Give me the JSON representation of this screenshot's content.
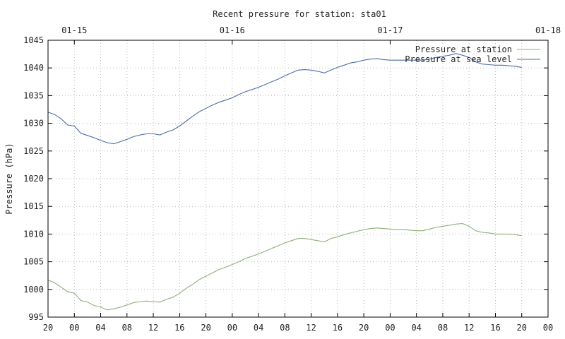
{
  "chart_data": {
    "type": "line",
    "title": "Recent pressure for station: sta01",
    "ylabel": "Pressure (hPa)",
    "xlabel": "",
    "ylim": [
      995,
      1045
    ],
    "xlim": [
      20,
      92
    ],
    "x_unit": "hours since 01-14 00:00",
    "y_ticks": [
      995,
      1000,
      1005,
      1010,
      1015,
      1020,
      1025,
      1030,
      1035,
      1040,
      1045
    ],
    "x_ticks": [
      {
        "x": 20,
        "label": "20"
      },
      {
        "x": 24,
        "label": "00"
      },
      {
        "x": 28,
        "label": "04"
      },
      {
        "x": 32,
        "label": "08"
      },
      {
        "x": 36,
        "label": "12"
      },
      {
        "x": 40,
        "label": "16"
      },
      {
        "x": 44,
        "label": "20"
      },
      {
        "x": 48,
        "label": "00"
      },
      {
        "x": 52,
        "label": "04"
      },
      {
        "x": 56,
        "label": "08"
      },
      {
        "x": 60,
        "label": "12"
      },
      {
        "x": 64,
        "label": "16"
      },
      {
        "x": 68,
        "label": "20"
      },
      {
        "x": 72,
        "label": "00"
      },
      {
        "x": 76,
        "label": "04"
      },
      {
        "x": 80,
        "label": "08"
      },
      {
        "x": 84,
        "label": "12"
      },
      {
        "x": 88,
        "label": "16"
      },
      {
        "x": 92,
        "label": "20"
      },
      {
        "x": 96,
        "label": "00"
      }
    ],
    "top_ticks": [
      {
        "x": 24,
        "label": "01-15"
      },
      {
        "x": 48,
        "label": "01-16"
      },
      {
        "x": 72,
        "label": "01-17"
      },
      {
        "x": 96,
        "label": "01-18"
      }
    ],
    "x_range": [
      20,
      96
    ],
    "grid": true,
    "legend_position": "top-right",
    "series": [
      {
        "name": "Pressure at station",
        "color": "#8fae78",
        "points": [
          [
            20,
            1001.7
          ],
          [
            21,
            1001.2
          ],
          [
            22,
            1000.4
          ],
          [
            23,
            999.6
          ],
          [
            24,
            999.3
          ],
          [
            25,
            998.0
          ],
          [
            26,
            997.7
          ],
          [
            27,
            997.1
          ],
          [
            28,
            996.8
          ],
          [
            29,
            996.3
          ],
          [
            30,
            996.5
          ],
          [
            31,
            996.8
          ],
          [
            32,
            997.2
          ],
          [
            33,
            997.6
          ],
          [
            34,
            997.8
          ],
          [
            35,
            997.9
          ],
          [
            36,
            997.8
          ],
          [
            37,
            997.7
          ],
          [
            38,
            998.2
          ],
          [
            39,
            998.6
          ],
          [
            40,
            999.3
          ],
          [
            41,
            1000.2
          ],
          [
            42,
            1000.9
          ],
          [
            43,
            1001.8
          ],
          [
            44,
            1002.4
          ],
          [
            45,
            1003.0
          ],
          [
            46,
            1003.6
          ],
          [
            47,
            1004.0
          ],
          [
            48,
            1004.5
          ],
          [
            49,
            1005.0
          ],
          [
            50,
            1005.6
          ],
          [
            51,
            1006.0
          ],
          [
            52,
            1006.4
          ],
          [
            53,
            1006.9
          ],
          [
            54,
            1007.4
          ],
          [
            55,
            1007.9
          ],
          [
            56,
            1008.4
          ],
          [
            57,
            1008.8
          ],
          [
            58,
            1009.2
          ],
          [
            59,
            1009.2
          ],
          [
            60,
            1009.0
          ],
          [
            61,
            1008.8
          ],
          [
            62,
            1008.6
          ],
          [
            63,
            1009.2
          ],
          [
            64,
            1009.5
          ],
          [
            65,
            1009.9
          ],
          [
            66,
            1010.2
          ],
          [
            67,
            1010.5
          ],
          [
            68,
            1010.8
          ],
          [
            69,
            1011.0
          ],
          [
            70,
            1011.1
          ],
          [
            71,
            1011.0
          ],
          [
            72,
            1010.9
          ],
          [
            73,
            1010.8
          ],
          [
            74,
            1010.8
          ],
          [
            75,
            1010.7
          ],
          [
            76,
            1010.6
          ],
          [
            77,
            1010.6
          ],
          [
            78,
            1010.9
          ],
          [
            79,
            1011.2
          ],
          [
            80,
            1011.4
          ],
          [
            81,
            1011.6
          ],
          [
            82,
            1011.8
          ],
          [
            83,
            1011.9
          ],
          [
            84,
            1011.4
          ],
          [
            85,
            1010.6
          ],
          [
            86,
            1010.3
          ],
          [
            87,
            1010.2
          ],
          [
            88,
            1010.0
          ],
          [
            89,
            1010.0
          ],
          [
            90,
            1010.0
          ],
          [
            91,
            1009.9
          ],
          [
            92,
            1009.7
          ]
        ]
      },
      {
        "name": "Pressure at sea level",
        "color": "#4a6ea9",
        "points": [
          [
            20,
            1032.0
          ],
          [
            21,
            1031.6
          ],
          [
            22,
            1030.8
          ],
          [
            23,
            1029.7
          ],
          [
            24,
            1029.5
          ],
          [
            25,
            1028.2
          ],
          [
            26,
            1027.8
          ],
          [
            27,
            1027.4
          ],
          [
            28,
            1026.9
          ],
          [
            29,
            1026.5
          ],
          [
            30,
            1026.3
          ],
          [
            31,
            1026.7
          ],
          [
            32,
            1027.1
          ],
          [
            33,
            1027.6
          ],
          [
            34,
            1027.9
          ],
          [
            35,
            1028.1
          ],
          [
            36,
            1028.1
          ],
          [
            37,
            1027.9
          ],
          [
            38,
            1028.4
          ],
          [
            39,
            1028.8
          ],
          [
            40,
            1029.5
          ],
          [
            41,
            1030.4
          ],
          [
            42,
            1031.3
          ],
          [
            43,
            1032.1
          ],
          [
            44,
            1032.7
          ],
          [
            45,
            1033.3
          ],
          [
            46,
            1033.8
          ],
          [
            47,
            1034.2
          ],
          [
            48,
            1034.6
          ],
          [
            49,
            1035.2
          ],
          [
            50,
            1035.7
          ],
          [
            51,
            1036.1
          ],
          [
            52,
            1036.5
          ],
          [
            53,
            1037.0
          ],
          [
            54,
            1037.5
          ],
          [
            55,
            1038.0
          ],
          [
            56,
            1038.6
          ],
          [
            57,
            1039.1
          ],
          [
            58,
            1039.6
          ],
          [
            59,
            1039.7
          ],
          [
            60,
            1039.6
          ],
          [
            61,
            1039.4
          ],
          [
            62,
            1039.1
          ],
          [
            63,
            1039.6
          ],
          [
            64,
            1040.1
          ],
          [
            65,
            1040.5
          ],
          [
            66,
            1040.9
          ],
          [
            67,
            1041.1
          ],
          [
            68,
            1041.4
          ],
          [
            69,
            1041.6
          ],
          [
            70,
            1041.7
          ],
          [
            71,
            1041.5
          ],
          [
            72,
            1041.4
          ],
          [
            73,
            1041.4
          ],
          [
            74,
            1041.4
          ],
          [
            75,
            1041.4
          ],
          [
            76,
            1041.4
          ],
          [
            77,
            1041.4
          ],
          [
            78,
            1041.6
          ],
          [
            79,
            1041.9
          ],
          [
            80,
            1042.1
          ],
          [
            81,
            1042.3
          ],
          [
            82,
            1042.6
          ],
          [
            83,
            1042.3
          ],
          [
            84,
            1041.9
          ],
          [
            85,
            1041.1
          ],
          [
            86,
            1040.7
          ],
          [
            87,
            1040.6
          ],
          [
            88,
            1040.5
          ],
          [
            89,
            1040.5
          ],
          [
            90,
            1040.4
          ],
          [
            91,
            1040.3
          ],
          [
            92,
            1040.1
          ]
        ]
      }
    ]
  }
}
